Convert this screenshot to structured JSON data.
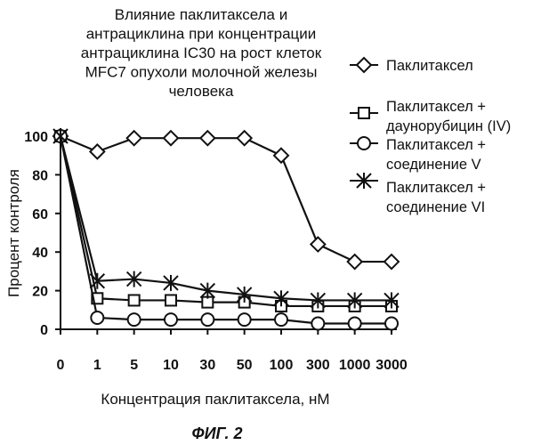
{
  "chart_data": {
    "type": "line",
    "title_lines": [
      "Влияние паклитаксела и",
      "антрациклина при концентрации",
      "антрациклина IC30 на рост клеток",
      "MFC7 опухоли молочной железы",
      "человека"
    ],
    "xlabel": "Концентрация паклитаксела, нМ",
    "ylabel": "Процент контроля",
    "categories": [
      "0",
      "1",
      "5",
      "10",
      "30",
      "50",
      "100",
      "300",
      "1000",
      "3000"
    ],
    "ylim": [
      0,
      100
    ],
    "yticks": [
      "0",
      "20",
      "40",
      "60",
      "80",
      "100"
    ],
    "series": [
      {
        "name": "Паклитаксел",
        "marker": "diamond",
        "values": [
          100,
          92,
          99,
          99,
          99,
          99,
          90,
          44,
          35,
          35
        ]
      },
      {
        "name": "Паклитаксел + даунорубицин (IV)",
        "marker": "square",
        "values": [
          100,
          16,
          15,
          15,
          14,
          14,
          12,
          12,
          12,
          12
        ]
      },
      {
        "name": "Паклитаксел + соединение V",
        "marker": "circle",
        "values": [
          100,
          6,
          5,
          5,
          5,
          5,
          5,
          3,
          3,
          3
        ]
      },
      {
        "name": "Паклитаксел + соединение VI",
        "marker": "star",
        "values": [
          100,
          25,
          26,
          24,
          20,
          18,
          16,
          15,
          15,
          15
        ]
      }
    ],
    "legend_position": "right",
    "grid": false
  },
  "figure_label": "ФИГ. 2"
}
